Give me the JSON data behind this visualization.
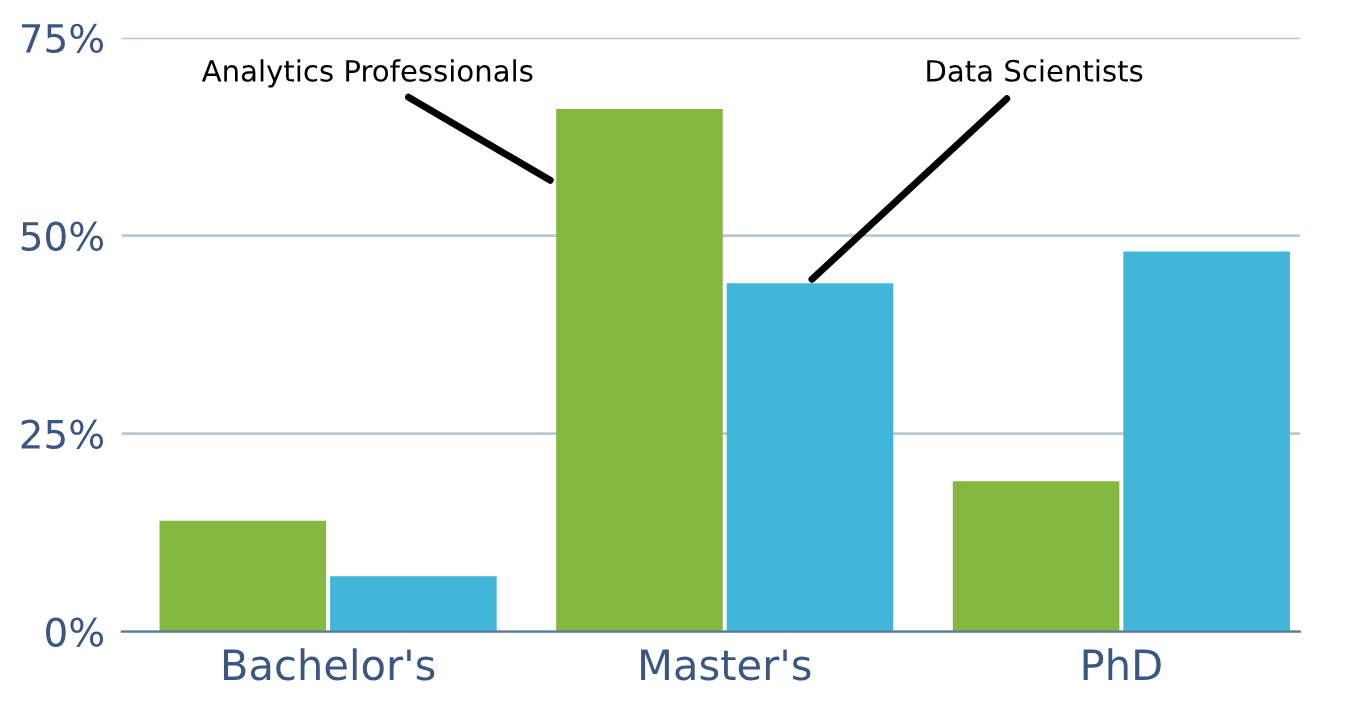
{
  "chart_data": {
    "type": "bar",
    "categories": [
      "Bachelor's",
      "Master's",
      "PhD"
    ],
    "series": [
      {
        "name": "Analytics Professionals",
        "color": "#84b840",
        "values": [
          14,
          66,
          19
        ]
      },
      {
        "name": "Data Scientists",
        "color": "#41b6d8",
        "values": [
          7,
          44,
          48
        ]
      }
    ],
    "ylim": [
      0,
      75
    ],
    "yticks": [
      {
        "value": 0,
        "label": "0%"
      },
      {
        "value": 25,
        "label": "25%"
      },
      {
        "value": 50,
        "label": "50%"
      },
      {
        "value": 75,
        "label": "75%"
      }
    ],
    "grid": "y",
    "legend": false
  }
}
